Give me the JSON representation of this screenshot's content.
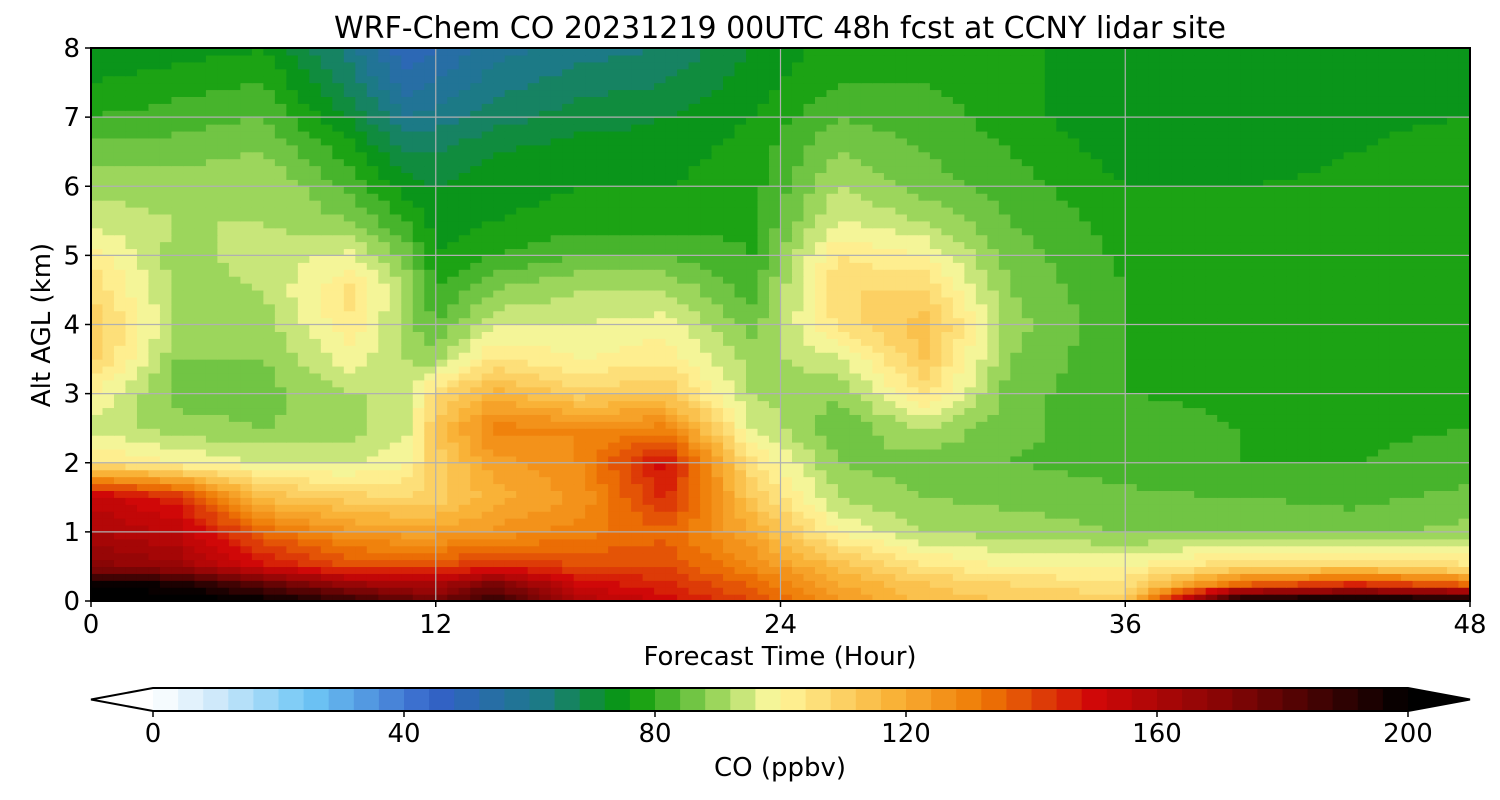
{
  "chart_data": {
    "type": "heatmap",
    "title": "WRF-Chem CO  20231219 00UTC 48h fcst at CCNY lidar site",
    "xlabel": "Forecast Time (Hour)",
    "ylabel": "Alt AGL (km)",
    "xlim": [
      0,
      48
    ],
    "ylim": [
      0,
      8
    ],
    "x_ticks": [
      "0",
      "12",
      "24",
      "36",
      "48"
    ],
    "y_ticks": [
      "0",
      "1",
      "2",
      "3",
      "4",
      "5",
      "6",
      "7",
      "8"
    ],
    "grid": true,
    "x": [
      0,
      3,
      6,
      9,
      11,
      12,
      14,
      17,
      20,
      23,
      26,
      29,
      32,
      36,
      40,
      44,
      48
    ],
    "y": [
      0,
      0.25,
      0.5,
      1,
      1.5,
      2,
      2.5,
      3,
      3.5,
      4,
      4.5,
      5,
      5.5,
      6,
      6.5,
      7,
      7.5,
      8
    ],
    "z": [
      [
        205,
        205,
        200,
        190,
        180,
        175,
        190,
        160,
        150,
        140,
        125,
        115,
        112,
        110,
        205,
        205,
        205
      ],
      [
        200,
        195,
        180,
        165,
        160,
        160,
        175,
        150,
        145,
        135,
        120,
        112,
        108,
        105,
        135,
        145,
        135
      ],
      [
        170,
        165,
        150,
        140,
        140,
        140,
        145,
        140,
        140,
        128,
        115,
        105,
        100,
        100,
        108,
        110,
        105
      ],
      [
        160,
        155,
        135,
        125,
        122,
        122,
        125,
        130,
        135,
        120,
        100,
        92,
        90,
        88,
        88,
        86,
        90
      ],
      [
        155,
        145,
        115,
        110,
        108,
        110,
        118,
        125,
        145,
        112,
        92,
        88,
        87,
        85,
        84,
        83,
        85
      ],
      [
        105,
        100,
        96,
        95,
        100,
        110,
        122,
        128,
        150,
        105,
        88,
        86,
        84,
        82,
        80,
        80,
        82
      ],
      [
        95,
        90,
        88,
        90,
        95,
        112,
        130,
        128,
        130,
        96,
        85,
        92,
        85,
        82,
        80,
        79,
        80
      ],
      [
        100,
        86,
        86,
        92,
        92,
        108,
        118,
        110,
        112,
        92,
        88,
        105,
        86,
        80,
        79,
        79,
        80
      ],
      [
        110,
        88,
        88,
        98,
        92,
        90,
        105,
        100,
        103,
        90,
        95,
        112,
        88,
        80,
        79,
        78,
        79
      ],
      [
        112,
        92,
        90,
        103,
        90,
        84,
        95,
        96,
        98,
        86,
        105,
        115,
        90,
        80,
        78,
        78,
        79
      ],
      [
        108,
        90,
        92,
        105,
        92,
        80,
        88,
        92,
        92,
        82,
        108,
        108,
        88,
        80,
        78,
        78,
        79
      ],
      [
        102,
        90,
        94,
        97,
        86,
        76,
        80,
        84,
        84,
        80,
        104,
        100,
        86,
        79,
        78,
        78,
        79
      ],
      [
        95,
        92,
        92,
        88,
        80,
        74,
        76,
        78,
        78,
        79,
        96,
        92,
        84,
        78,
        78,
        78,
        79
      ],
      [
        90,
        90,
        92,
        83,
        74,
        72,
        74,
        76,
        76,
        78,
        92,
        86,
        82,
        76,
        76,
        77,
        78
      ],
      [
        86,
        86,
        88,
        78,
        68,
        68,
        72,
        74,
        74,
        78,
        88,
        84,
        80,
        74,
        74,
        76,
        78
      ],
      [
        80,
        82,
        84,
        72,
        60,
        62,
        66,
        70,
        72,
        76,
        84,
        82,
        78,
        72,
        73,
        75,
        76
      ],
      [
        76,
        78,
        80,
        66,
        54,
        56,
        62,
        66,
        68,
        74,
        80,
        80,
        78,
        72,
        72,
        74,
        76
      ],
      [
        72,
        74,
        76,
        62,
        48,
        52,
        58,
        62,
        64,
        72,
        78,
        78,
        78,
        72,
        72,
        73,
        75
      ]
    ],
    "colorbar": {
      "label": "CO  (ppbv)",
      "min": 0,
      "max": 200,
      "ticks": [
        "0",
        "40",
        "80",
        "120",
        "160",
        "200"
      ],
      "extend": "both",
      "stops": [
        [
          0,
          "#ffffff"
        ],
        [
          10,
          "#cfe9fa"
        ],
        [
          25,
          "#6ec6f5"
        ],
        [
          45,
          "#3361c8"
        ],
        [
          62,
          "#1c7a86"
        ],
        [
          76,
          "#079a08"
        ],
        [
          90,
          "#9cd65c"
        ],
        [
          99,
          "#fff9a0"
        ],
        [
          118,
          "#f9b237"
        ],
        [
          132,
          "#ee7a05"
        ],
        [
          150,
          "#d00808"
        ],
        [
          172,
          "#820505"
        ],
        [
          200,
          "#000000"
        ]
      ]
    }
  }
}
